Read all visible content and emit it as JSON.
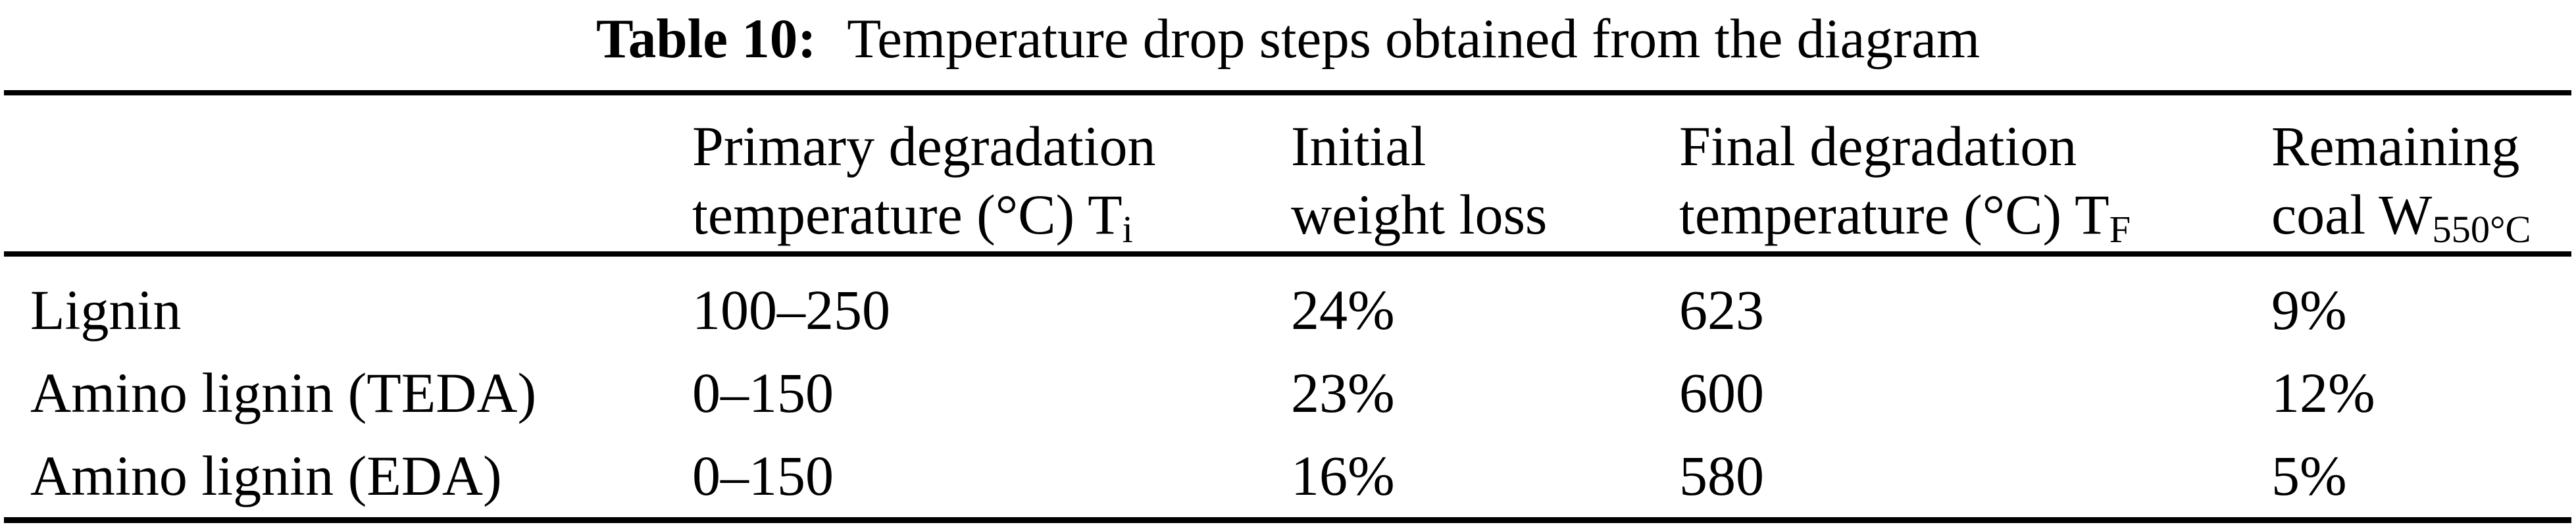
{
  "title": {
    "label": "Table 10:",
    "text": "Temperature drop steps obtained from the diagram"
  },
  "colors": {
    "background": "#ffffff",
    "text": "#000000",
    "rule": "#000000"
  },
  "table": {
    "columns": [
      {
        "line1": "",
        "line2_pre": "",
        "line2_sub": ""
      },
      {
        "line1": "Primary degradation",
        "line2_pre": "temperature (°C) T",
        "line2_sub": "i"
      },
      {
        "line1": "Initial",
        "line2_pre": "weight loss",
        "line2_sub": ""
      },
      {
        "line1": "Final degradation",
        "line2_pre": "temperature (°C) T",
        "line2_sub": "F"
      },
      {
        "line1": "Remaining",
        "line2_pre": "coal W",
        "line2_sub": "550°C"
      }
    ],
    "rows": [
      {
        "label": "Lignin",
        "values": [
          "100–250",
          "24%",
          "623",
          "9%"
        ]
      },
      {
        "label": "Amino lignin (TEDA)",
        "values": [
          "0–150",
          "23%",
          "600",
          "12%"
        ]
      },
      {
        "label": "Amino lignin (EDA)",
        "values": [
          "0–150",
          "16%",
          "580",
          "5%"
        ]
      }
    ]
  }
}
